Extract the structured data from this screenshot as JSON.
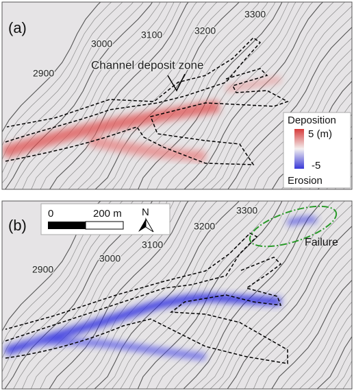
{
  "panel_a": {
    "label": "(a)",
    "contour_labels": [
      "3300",
      "3200",
      "3100",
      "3000",
      "2900"
    ],
    "annotation": "Channel deposit zone",
    "legend": {
      "top": "Deposition",
      "max": "5 (m)",
      "min": "-5",
      "bottom": "Erosion"
    }
  },
  "panel_b": {
    "label": "(b)",
    "contour_labels": [
      "3300",
      "3200",
      "3100",
      "3000",
      "2900"
    ],
    "scale_bar": {
      "start": "0",
      "end": "200 m"
    },
    "north": "N",
    "annotation": "Failure"
  }
}
